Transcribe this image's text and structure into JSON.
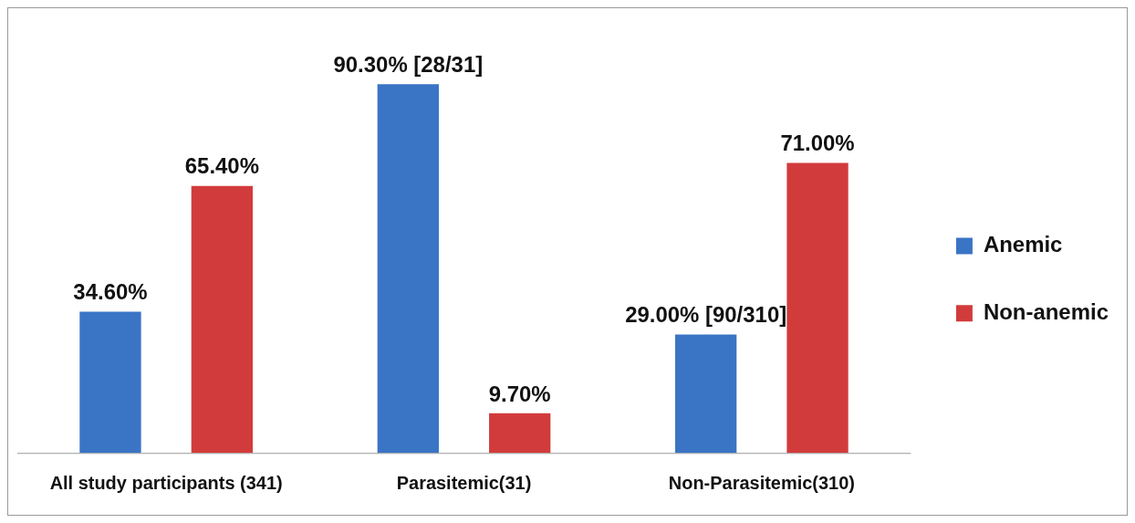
{
  "chart_data": {
    "type": "bar",
    "categories": [
      "All study participants (341)",
      "Parasitemic(31)",
      "Non-Parasitemic(310)"
    ],
    "series": [
      {
        "name": "Anemic",
        "color": "#3a74c4",
        "values": [
          34.6,
          90.3,
          29.0
        ],
        "value_labels": [
          "34.60%",
          "90.30% [28/31]",
          "29.00% [90/310]"
        ]
      },
      {
        "name": "Non-anemic",
        "color": "#d23b3b",
        "values": [
          65.4,
          9.7,
          71.0
        ],
        "value_labels": [
          "65.40%",
          "9.70%",
          "71.00%"
        ]
      }
    ],
    "grid": false,
    "legend": "right"
  }
}
